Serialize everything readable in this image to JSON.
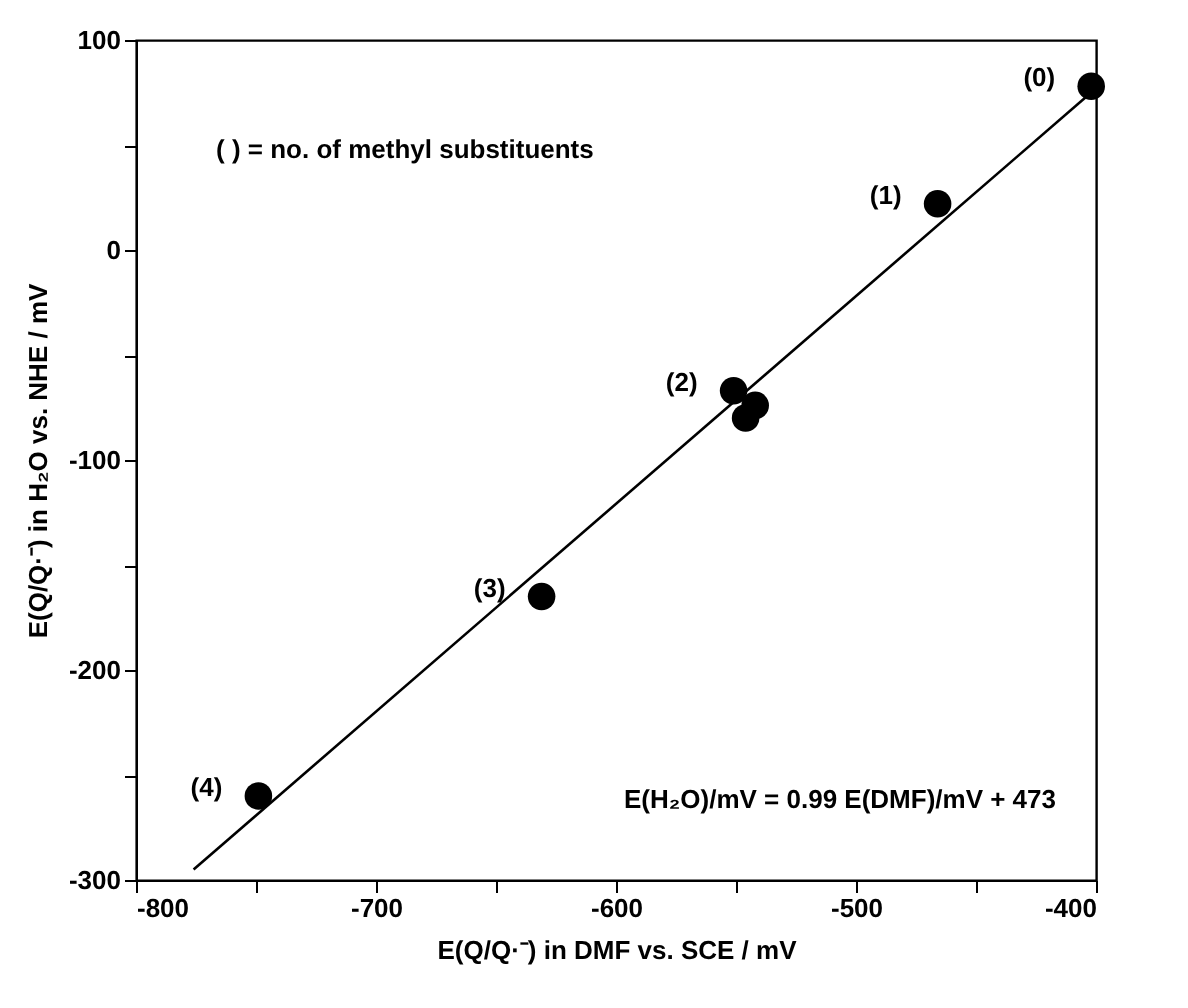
{
  "chart_data": {
    "type": "scatter",
    "xlabel": "E(Q/Q·⁻) in DMF vs. SCE / mV",
    "ylabel": "E(Q/Q·⁻) in H₂O vs. NHE / mV",
    "x": [
      -402,
      -466,
      -551,
      -542,
      -546,
      -631,
      -749
    ],
    "series": [
      {
        "color": "#000000",
        "marker": "circle",
        "values": [
          78,
          22,
          -67,
          -74,
          -80,
          -165,
          -260
        ]
      },
      {
        "type": "line",
        "color": "#000000",
        "marker": "none",
        "line_style": "solid",
        "x": [
          -776,
          -402
        ],
        "values": [
          -295,
          75
        ]
      }
    ],
    "xlim": [
      -800,
      -400
    ],
    "xticks": [
      -800,
      {
        "value": -750,
        "label": null
      },
      -700,
      {
        "value": -650,
        "label": null
      },
      -600,
      {
        "value": -550,
        "label": null
      },
      -500,
      {
        "value": -450,
        "label": null
      },
      -400
    ],
    "ylim": [
      -300,
      100
    ],
    "yticks": [
      -300,
      {
        "value": -250,
        "label": null
      },
      -200,
      {
        "value": -150,
        "label": null
      },
      -100,
      {
        "value": -50,
        "label": null
      },
      0,
      {
        "value": 50,
        "label": null
      },
      100
    ],
    "annotations": [
      {
        "text": "(0)",
        "x": -402,
        "y": 78
      },
      {
        "text": "(1)",
        "x": -466,
        "y": 22
      },
      {
        "text": "(2)",
        "x": -551,
        "y": -67
      },
      {
        "text": "(3)",
        "x": -631,
        "y": -165
      },
      {
        "text": "(4)",
        "x": -749,
        "y": -260
      },
      "( ) = no. of methyl substituents",
      "E(H₂O)/mV = 0.99 E(DMF)/mV + 473"
    ],
    "grid": false
  }
}
